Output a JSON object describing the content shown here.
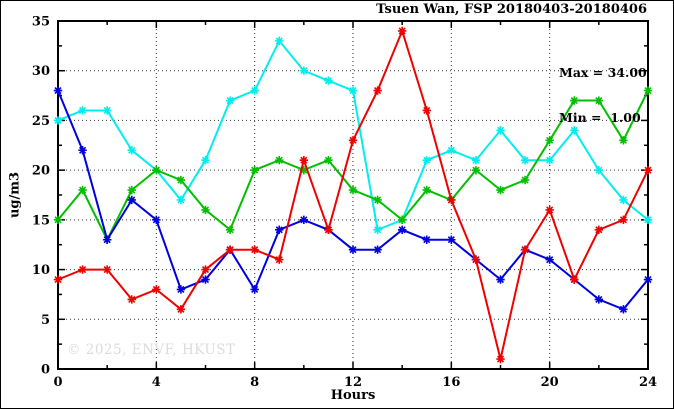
{
  "watermark": "© 2025, ENVF, HKUST",
  "annotations": {
    "max_text": "Max = 34.00",
    "min_text": "Min =  1.00"
  },
  "chart_data": {
    "type": "line",
    "title": "Tsuen Wan, FSP 20180403-20180406",
    "xlabel": "Hours",
    "ylabel": "ug/m3",
    "xlim": [
      0,
      24
    ],
    "ylim": [
      0,
      35
    ],
    "x_major_ticks": [
      0,
      4,
      8,
      12,
      16,
      20,
      24
    ],
    "x_minor_step": 2,
    "y_major_ticks": [
      0,
      5,
      10,
      15,
      20,
      25,
      30,
      35
    ],
    "y_minor_step": 2.5,
    "grid": true,
    "legend": "none",
    "max_value": 34.0,
    "min_value": 1.0,
    "x": [
      0,
      1,
      2,
      3,
      4,
      5,
      6,
      7,
      8,
      9,
      10,
      11,
      12,
      13,
      14,
      15,
      16,
      17,
      18,
      19,
      20,
      21,
      22,
      23,
      24
    ],
    "series": [
      {
        "name": "series-cyan",
        "color": "#00eeee",
        "values": [
          25,
          26,
          26,
          22,
          20,
          17,
          21,
          27,
          28,
          33,
          30,
          29,
          28,
          14,
          15,
          21,
          22,
          21,
          24,
          21,
          21,
          24,
          20,
          17,
          15
        ]
      },
      {
        "name": "series-green",
        "color": "#00c000",
        "values": [
          15,
          18,
          13,
          18,
          20,
          19,
          16,
          14,
          20,
          21,
          20,
          21,
          18,
          17,
          15,
          18,
          17,
          20,
          18,
          19,
          23,
          27,
          27,
          23,
          28
        ]
      },
      {
        "name": "series-blue",
        "color": "#0000e0",
        "values": [
          28,
          22,
          13,
          17,
          15,
          8,
          9,
          12,
          8,
          14,
          15,
          14,
          12,
          12,
          14,
          13,
          13,
          11,
          9,
          12,
          11,
          9,
          7,
          6,
          9
        ]
      },
      {
        "name": "series-red",
        "color": "#f00000",
        "values": [
          9,
          10,
          10,
          7,
          8,
          6,
          10,
          12,
          12,
          11,
          21,
          14,
          23,
          28,
          34,
          26,
          17,
          11,
          1,
          12,
          16,
          9,
          14,
          15,
          20
        ]
      }
    ]
  }
}
